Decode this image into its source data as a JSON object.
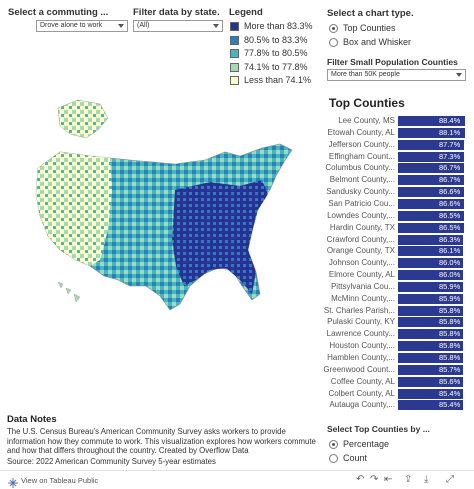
{
  "controls": {
    "commute_title": "Select a commuting ...",
    "commute_value": "Drove alone to work",
    "state_title": "Filter data by state.",
    "state_value": "(All)",
    "chart_type_title": "Select a chart type.",
    "chart_type_options": [
      "Top Counties",
      "Box and Whisker"
    ],
    "chart_type_selected": 0,
    "small_pop_title": "Filter Small Population Counties",
    "small_pop_value": "More than 50K people",
    "top_by_title": "Select Top Counties by ...",
    "top_by_options": [
      "Percentage",
      "Count"
    ],
    "top_by_selected": 0
  },
  "legend": {
    "title": "Legend",
    "items": [
      {
        "label": "More than 83.3%",
        "color": "#253494"
      },
      {
        "label": "80.5% to 83.3%",
        "color": "#2c7fb8"
      },
      {
        "label": "77.8% to 80.5%",
        "color": "#41b6c4"
      },
      {
        "label": "74.1% to 77.8%",
        "color": "#a1dab4"
      },
      {
        "label": "Less than 74.1%",
        "color": "#ffffcc"
      }
    ]
  },
  "chart_data": {
    "type": "bar",
    "title": "Top Counties",
    "categories": [
      "Lee County, MS",
      "Etowah County, AL",
      "Jefferson County...",
      "Effingham Count...",
      "Columbus County...",
      "Belmont County,...",
      "Sandusky County...",
      "San Patricio Cou...",
      "Lowndes County,...",
      "Hardin County, TX",
      "Crawford County,...",
      "Orange County, TX",
      "Johnson County,...",
      "Elmore County, AL",
      "Pittsylvania Cou...",
      "McMinn County,...",
      "St. Charles Parish...",
      "Pulaski County, KY",
      "Lawrence County...",
      "Houston County,...",
      "Hamblen County,...",
      "Greenwood Count...",
      "Coffee County, AL",
      "Colbert County, AL",
      "Autauga County,..."
    ],
    "values": [
      88.4,
      88.1,
      87.7,
      87.3,
      86.7,
      86.7,
      86.6,
      86.6,
      86.5,
      86.5,
      86.3,
      86.1,
      86.0,
      86.0,
      85.9,
      85.9,
      85.8,
      85.8,
      85.8,
      85.8,
      85.8,
      85.7,
      85.6,
      85.4,
      85.4
    ],
    "value_labels": [
      "88.4%",
      "88.1%",
      "87.7%",
      "87.3%",
      "86.7%",
      "86.7%",
      "86.6%",
      "86.6%",
      "86.5%",
      "86.5%",
      "86.3%",
      "86.1%",
      "86.0%",
      "86.0%",
      "85.9%",
      "85.9%",
      "85.8%",
      "85.8%",
      "85.8%",
      "85.8%",
      "85.8%",
      "85.7%",
      "85.6%",
      "85.4%",
      "85.4%"
    ],
    "bar_color": "#2b3990"
  },
  "notes": {
    "title": "Data Notes",
    "text": "The U.S. Census Bureau's American Community Survey asks workers to provide information how they commute to work. This visualization explores how workers commute and how that differs throughout the country.  Created by Overflow Data",
    "source": "Source: 2022 American Community Survey 5-year estimates"
  },
  "footer": {
    "view_label": "View on Tableau Public",
    "icons": [
      "tableau-logo-icon",
      "undo-icon",
      "redo-icon",
      "revert-icon",
      "share-icon",
      "download-icon",
      "fullscreen-icon"
    ]
  }
}
